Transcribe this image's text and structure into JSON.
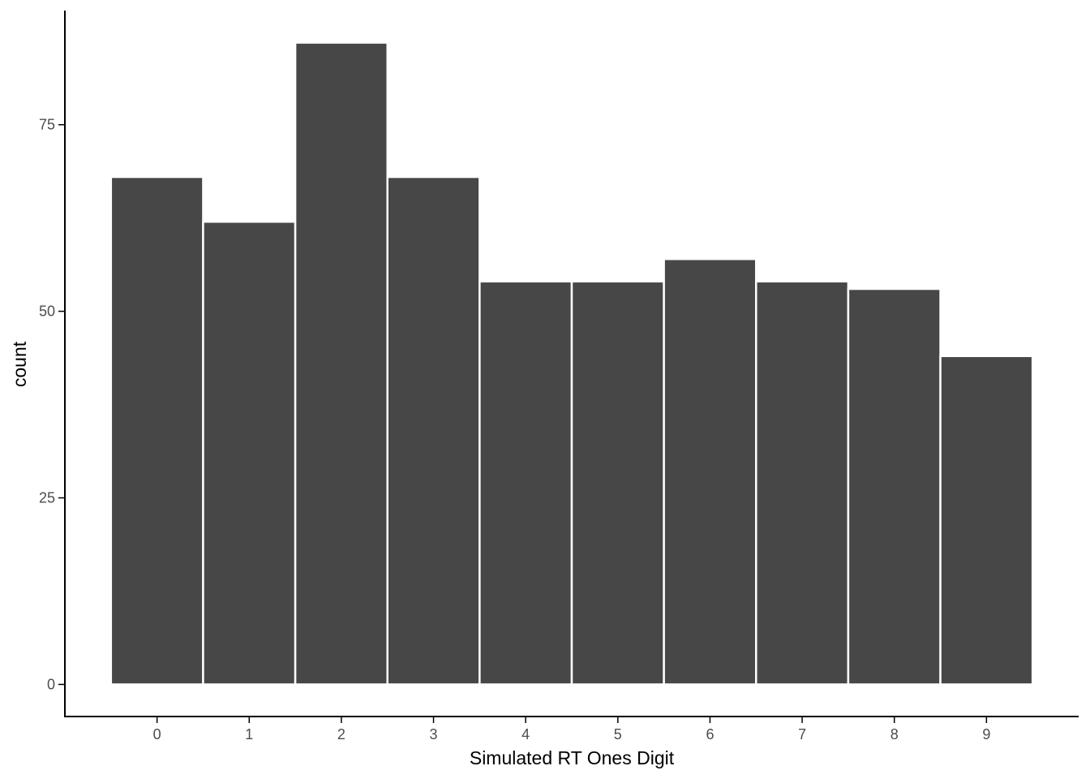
{
  "chart_data": {
    "type": "bar",
    "categories": [
      "0",
      "1",
      "2",
      "3",
      "4",
      "5",
      "6",
      "7",
      "8",
      "9"
    ],
    "values": [
      68,
      62,
      86,
      68,
      54,
      54,
      57,
      54,
      53,
      44
    ],
    "title": "",
    "xlabel": "Simulated RT Ones Digit",
    "ylabel": "count",
    "ylim": [
      -4.3,
      90.3
    ],
    "yticks": [
      0,
      25,
      50,
      75
    ],
    "grid": false,
    "legend": "none",
    "bar_color": "#474747",
    "bar_edge_color": "#ffffff",
    "axis_color": "#000000",
    "tick_label_color": "#4d4d4d"
  }
}
